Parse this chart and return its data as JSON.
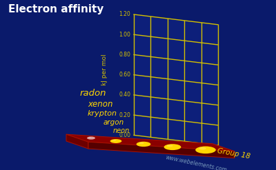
{
  "title": "Electron affinity",
  "background_color": "#0a1a6b",
  "ylabel": "kJ per mol",
  "watermark": "www.webelements.com",
  "group_label": "Group 18",
  "yticks": [
    0.0,
    0.2,
    0.4,
    0.6,
    0.8,
    1.0,
    1.2
  ],
  "elements": [
    "neon",
    "argon",
    "krypton",
    "xenon",
    "radon"
  ],
  "element_colors": [
    "#dba0a0",
    "#ffd700",
    "#ffd700",
    "#ffd700",
    "#ffd700"
  ],
  "platform_top_color": "#8b0000",
  "platform_front_color": "#6b0000",
  "platform_side_color": "#550000",
  "grid_color": "#d4c000",
  "text_color": "#ffd700",
  "title_color": "#ffffff",
  "title_fontsize": 11,
  "tick_fontsize": 5.5,
  "elem_fontsize": 8,
  "watermark_color": "#7799bb",
  "wall_bg_color": "#0d1f7a",
  "grid_lw": 1.0
}
